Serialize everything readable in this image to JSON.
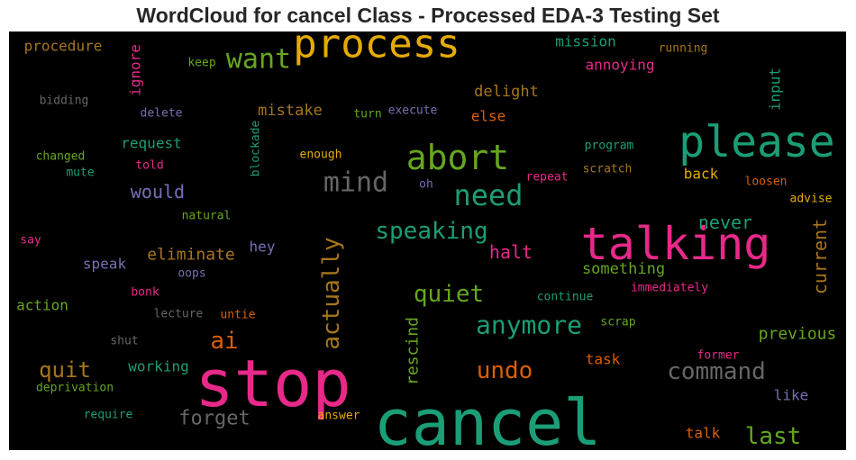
{
  "chart_data": {
    "type": "wordcloud",
    "title": "WordCloud for cancel Class - Processed EDA-3 Testing Set",
    "background": "#000000",
    "palette": [
      "#1b9e77",
      "#d95f02",
      "#7570b3",
      "#e7298a",
      "#66a61e",
      "#e6ab02",
      "#a6761d",
      "#666666"
    ],
    "words": [
      {
        "text": "stop",
        "weight": 100,
        "color": "#e7298a"
      },
      {
        "text": "cancel",
        "weight": 95,
        "color": "#1b9e77"
      },
      {
        "text": "talking",
        "weight": 68,
        "color": "#e7298a"
      },
      {
        "text": "please",
        "weight": 66,
        "color": "#1b9e77"
      },
      {
        "text": "process",
        "weight": 55,
        "color": "#e6ab02"
      },
      {
        "text": "abort",
        "weight": 50,
        "color": "#66a61e"
      },
      {
        "text": "need",
        "weight": 40,
        "color": "#1b9e77"
      },
      {
        "text": "mind",
        "weight": 38,
        "color": "#666666"
      },
      {
        "text": "want",
        "weight": 36,
        "color": "#66a61e"
      },
      {
        "text": "actually",
        "weight": 34,
        "color": "#a6761d"
      },
      {
        "text": "anymore",
        "weight": 32,
        "color": "#1b9e77"
      },
      {
        "text": "speaking",
        "weight": 30,
        "color": "#1b9e77"
      },
      {
        "text": "command",
        "weight": 30,
        "color": "#666666"
      },
      {
        "text": "undo",
        "weight": 30,
        "color": "#d95f02"
      },
      {
        "text": "quiet",
        "weight": 29,
        "color": "#66a61e"
      },
      {
        "text": "last",
        "weight": 28,
        "color": "#66a61e"
      },
      {
        "text": "current",
        "weight": 27,
        "color": "#a6761d"
      },
      {
        "text": "ai",
        "weight": 27,
        "color": "#d95f02"
      },
      {
        "text": "quit",
        "weight": 25,
        "color": "#a6761d"
      },
      {
        "text": "forget",
        "weight": 24,
        "color": "#666666"
      },
      {
        "text": "would",
        "weight": 23,
        "color": "#7570b3"
      },
      {
        "text": "halt",
        "weight": 23,
        "color": "#e7298a"
      },
      {
        "text": "never",
        "weight": 21,
        "color": "#1b9e77"
      },
      {
        "text": "rescind",
        "weight": 19,
        "color": "#66a61e"
      },
      {
        "text": "eliminate",
        "weight": 18,
        "color": "#a6761d"
      },
      {
        "text": "previous",
        "weight": 18,
        "color": "#66a61e"
      },
      {
        "text": "mistake",
        "weight": 18,
        "color": "#a6761d"
      },
      {
        "text": "delight",
        "weight": 18,
        "color": "#a6761d"
      },
      {
        "text": "something",
        "weight": 17,
        "color": "#66a61e"
      },
      {
        "text": "request",
        "weight": 17,
        "color": "#1b9e77"
      },
      {
        "text": "working",
        "weight": 17,
        "color": "#1b9e77"
      },
      {
        "text": "annoying",
        "weight": 17,
        "color": "#e7298a"
      },
      {
        "text": "mission",
        "weight": 17,
        "color": "#1b9e77"
      },
      {
        "text": "speak",
        "weight": 17,
        "color": "#7570b3"
      },
      {
        "text": "action",
        "weight": 17,
        "color": "#66a61e"
      },
      {
        "text": "procedure",
        "weight": 17,
        "color": "#a6761d"
      },
      {
        "text": "hey",
        "weight": 17,
        "color": "#7570b3"
      },
      {
        "text": "back",
        "weight": 16,
        "color": "#e6ab02"
      },
      {
        "text": "task",
        "weight": 16,
        "color": "#d95f02"
      },
      {
        "text": "talk",
        "weight": 16,
        "color": "#d95f02"
      },
      {
        "text": "input",
        "weight": 16,
        "color": "#1b9e77"
      },
      {
        "text": "ignore",
        "weight": 16,
        "color": "#e7298a"
      },
      {
        "text": "like",
        "weight": 16,
        "color": "#7570b3"
      },
      {
        "text": "else",
        "weight": 15,
        "color": "#d95f02"
      },
      {
        "text": "immediately",
        "weight": 13,
        "color": "#e7298a"
      },
      {
        "text": "continue",
        "weight": 13,
        "color": "#1b9e77"
      },
      {
        "text": "scrap",
        "weight": 13,
        "color": "#66a61e"
      },
      {
        "text": "loosen",
        "weight": 13,
        "color": "#d95f02"
      },
      {
        "text": "advise",
        "weight": 13,
        "color": "#e6ab02"
      },
      {
        "text": "running",
        "weight": 13,
        "color": "#a6761d"
      },
      {
        "text": "program",
        "weight": 13,
        "color": "#1b9e77"
      },
      {
        "text": "scratch",
        "weight": 13,
        "color": "#a6761d"
      },
      {
        "text": "repeat",
        "weight": 13,
        "color": "#e7298a"
      },
      {
        "text": "enough",
        "weight": 13,
        "color": "#e6ab02"
      },
      {
        "text": "execute",
        "weight": 13,
        "color": "#7570b3"
      },
      {
        "text": "turn",
        "weight": 13,
        "color": "#66a61e"
      },
      {
        "text": "oh",
        "weight": 13,
        "color": "#7570b3"
      },
      {
        "text": "blockade",
        "weight": 13,
        "color": "#1b9e77"
      },
      {
        "text": "former",
        "weight": 13,
        "color": "#e7298a"
      },
      {
        "text": "answer",
        "weight": 13,
        "color": "#e6ab02"
      },
      {
        "text": "require",
        "weight": 13,
        "color": "#1b9e77"
      },
      {
        "text": "deprivation",
        "weight": 13,
        "color": "#66a61e"
      },
      {
        "text": "shut",
        "weight": 13,
        "color": "#666666"
      },
      {
        "text": "lecture",
        "weight": 13,
        "color": "#666666"
      },
      {
        "text": "untie",
        "weight": 13,
        "color": "#d95f02"
      },
      {
        "text": "bonk",
        "weight": 13,
        "color": "#e7298a"
      },
      {
        "text": "oops",
        "weight": 13,
        "color": "#7570b3"
      },
      {
        "text": "natural",
        "weight": 13,
        "color": "#66a61e"
      },
      {
        "text": "say",
        "weight": 13,
        "color": "#e7298a"
      },
      {
        "text": "mute",
        "weight": 13,
        "color": "#1b9e77"
      },
      {
        "text": "told",
        "weight": 13,
        "color": "#e7298a"
      },
      {
        "text": "changed",
        "weight": 13,
        "color": "#66a61e"
      },
      {
        "text": "delete",
        "weight": 13,
        "color": "#7570b3"
      },
      {
        "text": "bidding",
        "weight": 13,
        "color": "#666666"
      },
      {
        "text": "keep",
        "weight": 13,
        "color": "#66a61e"
      }
    ]
  }
}
